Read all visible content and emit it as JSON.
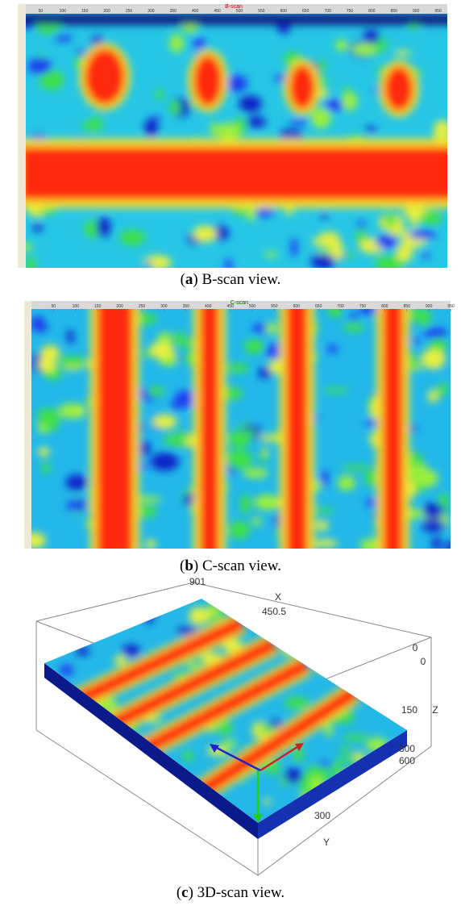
{
  "figures": [
    {
      "title": "B-scan",
      "ruler": [
        50,
        100,
        150,
        200,
        250,
        300,
        350,
        400,
        450,
        500,
        550,
        600,
        650,
        700,
        750,
        800,
        850,
        900,
        950
      ]
    },
    {
      "title": "C-scan",
      "ruler": [
        50,
        100,
        150,
        200,
        250,
        300,
        350,
        400,
        450,
        500,
        550,
        600,
        650,
        700,
        750,
        800,
        850,
        900,
        950
      ]
    },
    {
      "labels": [
        "901",
        "X",
        "450.5",
        "0",
        "0",
        "150",
        "Z",
        "300",
        "600",
        "300",
        "Y"
      ]
    }
  ],
  "captions": [
    {
      "parts": [
        "(",
        "a",
        ") B-scan view."
      ]
    },
    {
      "parts": [
        "(",
        "b",
        ") C-scan view."
      ]
    },
    {
      "parts": [
        "(",
        "c",
        ") 3D-scan view."
      ]
    }
  ]
}
